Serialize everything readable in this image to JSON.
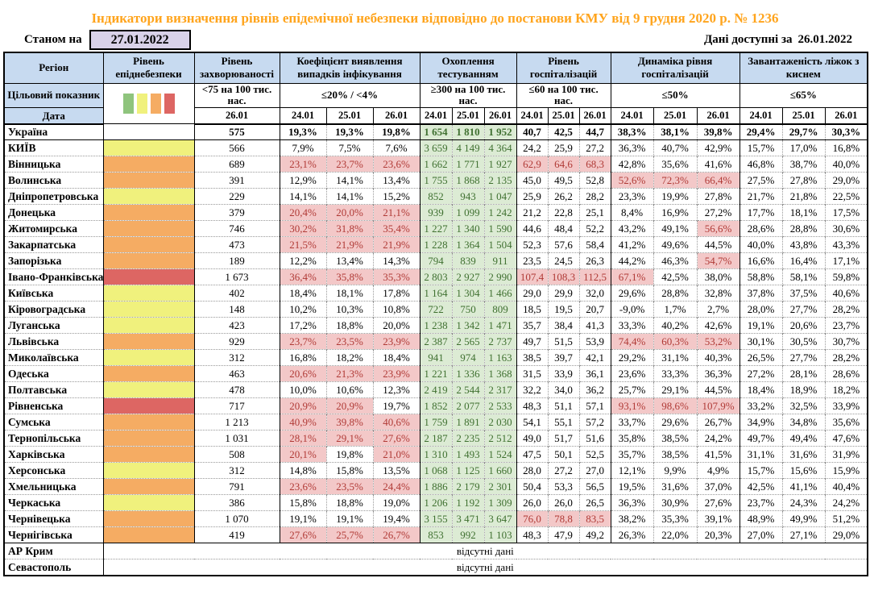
{
  "title": "Індикатори визначення рівнів епідемічної небезпеки відповідно до постанови КМУ від 9 грудня 2020 р. № 1236",
  "as_of_label": "Станом на",
  "as_of_date": "27.01.2022",
  "data_available_label": "Дані доступні за",
  "data_available_date": "26.01.2022",
  "target_label": "Цільовий показник",
  "date_label": "Дата",
  "no_data_text": "відсутні дані",
  "columns": {
    "region": "Регіон",
    "danger": "Рівень епіднебезпеки",
    "morbidity": "Рівень захворюваності",
    "detection": "Коефіцієнт виявлення випадків інфікування",
    "testing": "Охоплення тестуванням",
    "hosp": "Рівень госпіталізацій",
    "hosp_dyn": "Динаміка рівня госпіталізацій",
    "beds": "Завантаженість ліжок з киснем"
  },
  "targets": {
    "morbidity": "<75 на 100 тис. нас.",
    "detection": "≤20% / <4%",
    "testing": "≥300 на 100 тис. нас.",
    "hosp": "≤60 на 100 тис. нас.",
    "hosp_dyn": "≤50%",
    "beds": "≤65%"
  },
  "dates": {
    "morbidity": "26.01",
    "triple": [
      "24.01",
      "25.01",
      "26.01"
    ]
  },
  "legend_colors": [
    "#8FC47D",
    "#F0F17D",
    "#F5AC63",
    "#DD6663"
  ],
  "colors": {
    "title": "#FFA41C",
    "header_bg": "#C7DAF0",
    "date_box_bg": "#D9D2E9",
    "level_yellow": "#F0F17D",
    "level_orange": "#F5AC63",
    "level_red": "#DD6663",
    "level_none": "#FFFFFF",
    "ok_green_bg": "#DCEBD4",
    "ok_green_text": "#3F7030",
    "alert_bg": "#F3C8C8",
    "alert_text": "#B03A36"
  },
  "rows": [
    {
      "region": "Україна",
      "level": "none",
      "bold": true,
      "morb": "575",
      "det": [
        "19,3%",
        "19,3%",
        "19,8%"
      ],
      "det_a": [
        0,
        0,
        0
      ],
      "test": [
        "1 654",
        "1 810",
        "1 952"
      ],
      "hosp": [
        "40,7",
        "42,5",
        "44,7"
      ],
      "hosp_a": [
        0,
        0,
        0
      ],
      "dyn": [
        "38,3%",
        "38,1%",
        "39,8%"
      ],
      "dyn_a": [
        0,
        0,
        0
      ],
      "beds": [
        "29,4%",
        "29,7%",
        "30,3%"
      ]
    },
    {
      "region": "КИЇВ",
      "level": "yellow",
      "morb": "566",
      "det": [
        "7,9%",
        "7,5%",
        "7,6%"
      ],
      "det_a": [
        0,
        0,
        0
      ],
      "test": [
        "3 659",
        "4 149",
        "4 364"
      ],
      "hosp": [
        "24,2",
        "25,9",
        "27,2"
      ],
      "hosp_a": [
        0,
        0,
        0
      ],
      "dyn": [
        "36,3%",
        "40,7%",
        "42,9%"
      ],
      "dyn_a": [
        0,
        0,
        0
      ],
      "beds": [
        "15,7%",
        "17,0%",
        "16,8%"
      ]
    },
    {
      "region": "Вінницька",
      "level": "orange",
      "morb": "689",
      "det": [
        "23,1%",
        "23,7%",
        "23,6%"
      ],
      "det_a": [
        1,
        1,
        1
      ],
      "test": [
        "1 662",
        "1 771",
        "1 927"
      ],
      "hosp": [
        "62,9",
        "64,6",
        "68,3"
      ],
      "hosp_a": [
        1,
        1,
        1
      ],
      "dyn": [
        "42,8%",
        "35,6%",
        "41,6%"
      ],
      "dyn_a": [
        0,
        0,
        0
      ],
      "beds": [
        "46,8%",
        "38,7%",
        "40,0%"
      ]
    },
    {
      "region": "Волинська",
      "level": "orange",
      "morb": "391",
      "det": [
        "12,9%",
        "14,1%",
        "13,4%"
      ],
      "det_a": [
        0,
        0,
        0
      ],
      "test": [
        "1 755",
        "1 868",
        "2 135"
      ],
      "hosp": [
        "45,0",
        "49,5",
        "52,8"
      ],
      "hosp_a": [
        0,
        0,
        0
      ],
      "dyn": [
        "52,6%",
        "72,3%",
        "66,4%"
      ],
      "dyn_a": [
        1,
        1,
        1
      ],
      "beds": [
        "27,5%",
        "27,8%",
        "29,0%"
      ]
    },
    {
      "region": "Дніпропетровська",
      "level": "yellow",
      "morb": "229",
      "det": [
        "14,1%",
        "14,1%",
        "15,2%"
      ],
      "det_a": [
        0,
        0,
        0
      ],
      "test": [
        "852",
        "943",
        "1 047"
      ],
      "hosp": [
        "25,9",
        "26,2",
        "28,2"
      ],
      "hosp_a": [
        0,
        0,
        0
      ],
      "dyn": [
        "23,3%",
        "19,9%",
        "27,8%"
      ],
      "dyn_a": [
        0,
        0,
        0
      ],
      "beds": [
        "21,7%",
        "21,8%",
        "22,5%"
      ]
    },
    {
      "region": "Донецька",
      "level": "orange",
      "morb": "379",
      "det": [
        "20,4%",
        "20,0%",
        "21,1%"
      ],
      "det_a": [
        1,
        1,
        1
      ],
      "test": [
        "939",
        "1 099",
        "1 242"
      ],
      "hosp": [
        "21,2",
        "22,8",
        "25,1"
      ],
      "hosp_a": [
        0,
        0,
        0
      ],
      "dyn": [
        "8,4%",
        "16,9%",
        "27,2%"
      ],
      "dyn_a": [
        0,
        0,
        0
      ],
      "beds": [
        "17,7%",
        "18,1%",
        "17,5%"
      ]
    },
    {
      "region": "Житомирська",
      "level": "orange",
      "morb": "746",
      "det": [
        "30,2%",
        "31,8%",
        "35,4%"
      ],
      "det_a": [
        1,
        1,
        1
      ],
      "test": [
        "1 227",
        "1 340",
        "1 590"
      ],
      "hosp": [
        "44,6",
        "48,4",
        "52,2"
      ],
      "hosp_a": [
        0,
        0,
        0
      ],
      "dyn": [
        "43,2%",
        "49,1%",
        "56,6%"
      ],
      "dyn_a": [
        0,
        0,
        1
      ],
      "beds": [
        "28,6%",
        "28,8%",
        "30,6%"
      ]
    },
    {
      "region": "Закарпатська",
      "level": "orange",
      "morb": "473",
      "det": [
        "21,5%",
        "21,9%",
        "21,9%"
      ],
      "det_a": [
        1,
        1,
        1
      ],
      "test": [
        "1 228",
        "1 364",
        "1 504"
      ],
      "hosp": [
        "52,3",
        "57,6",
        "58,4"
      ],
      "hosp_a": [
        0,
        0,
        0
      ],
      "dyn": [
        "41,2%",
        "49,6%",
        "44,5%"
      ],
      "dyn_a": [
        0,
        0,
        0
      ],
      "beds": [
        "40,0%",
        "43,8%",
        "43,3%"
      ]
    },
    {
      "region": "Запорізька",
      "level": "orange",
      "morb": "189",
      "det": [
        "12,2%",
        "13,4%",
        "14,3%"
      ],
      "det_a": [
        0,
        0,
        0
      ],
      "test": [
        "794",
        "839",
        "911"
      ],
      "hosp": [
        "23,5",
        "24,5",
        "26,3"
      ],
      "hosp_a": [
        0,
        0,
        0
      ],
      "dyn": [
        "44,2%",
        "46,3%",
        "54,7%"
      ],
      "dyn_a": [
        0,
        0,
        1
      ],
      "beds": [
        "16,6%",
        "16,4%",
        "17,1%"
      ]
    },
    {
      "region": "Івано-Франківська",
      "level": "red",
      "morb": "1 673",
      "det": [
        "36,4%",
        "35,8%",
        "35,3%"
      ],
      "det_a": [
        1,
        1,
        1
      ],
      "test": [
        "2 803",
        "2 927",
        "2 990"
      ],
      "hosp": [
        "107,4",
        "108,3",
        "112,5"
      ],
      "hosp_a": [
        1,
        1,
        1
      ],
      "dyn": [
        "67,1%",
        "42,5%",
        "38,0%"
      ],
      "dyn_a": [
        1,
        0,
        0
      ],
      "beds": [
        "58,8%",
        "58,1%",
        "59,8%"
      ]
    },
    {
      "region": "Київська",
      "level": "yellow",
      "morb": "402",
      "det": [
        "18,4%",
        "18,1%",
        "17,8%"
      ],
      "det_a": [
        0,
        0,
        0
      ],
      "test": [
        "1 164",
        "1 304",
        "1 466"
      ],
      "hosp": [
        "29,0",
        "29,9",
        "32,0"
      ],
      "hosp_a": [
        0,
        0,
        0
      ],
      "dyn": [
        "29,6%",
        "28,8%",
        "32,8%"
      ],
      "dyn_a": [
        0,
        0,
        0
      ],
      "beds": [
        "37,8%",
        "37,5%",
        "40,6%"
      ]
    },
    {
      "region": "Кіровоградська",
      "level": "yellow",
      "morb": "148",
      "det": [
        "10,2%",
        "10,3%",
        "10,8%"
      ],
      "det_a": [
        0,
        0,
        0
      ],
      "test": [
        "722",
        "750",
        "809"
      ],
      "hosp": [
        "18,5",
        "19,5",
        "20,7"
      ],
      "hosp_a": [
        0,
        0,
        0
      ],
      "dyn": [
        "-9,0%",
        "1,7%",
        "2,7%"
      ],
      "dyn_a": [
        0,
        0,
        0
      ],
      "beds": [
        "28,0%",
        "27,7%",
        "28,2%"
      ]
    },
    {
      "region": "Луганська",
      "level": "yellow",
      "morb": "423",
      "det": [
        "17,2%",
        "18,8%",
        "20,0%"
      ],
      "det_a": [
        0,
        0,
        0
      ],
      "test": [
        "1 238",
        "1 342",
        "1 471"
      ],
      "hosp": [
        "35,7",
        "38,4",
        "41,3"
      ],
      "hosp_a": [
        0,
        0,
        0
      ],
      "dyn": [
        "33,3%",
        "40,2%",
        "42,6%"
      ],
      "dyn_a": [
        0,
        0,
        0
      ],
      "beds": [
        "19,1%",
        "20,6%",
        "23,7%"
      ]
    },
    {
      "region": "Львівська",
      "level": "orange",
      "morb": "929",
      "det": [
        "23,7%",
        "23,5%",
        "23,9%"
      ],
      "det_a": [
        1,
        1,
        1
      ],
      "test": [
        "2 387",
        "2 565",
        "2 737"
      ],
      "hosp": [
        "49,7",
        "51,5",
        "53,9"
      ],
      "hosp_a": [
        0,
        0,
        0
      ],
      "dyn": [
        "74,4%",
        "60,3%",
        "53,2%"
      ],
      "dyn_a": [
        1,
        1,
        1
      ],
      "beds": [
        "30,1%",
        "30,5%",
        "30,7%"
      ]
    },
    {
      "region": "Миколаївська",
      "level": "yellow",
      "morb": "312",
      "det": [
        "16,8%",
        "18,2%",
        "18,4%"
      ],
      "det_a": [
        0,
        0,
        0
      ],
      "test": [
        "941",
        "974",
        "1 163"
      ],
      "hosp": [
        "38,5",
        "39,7",
        "42,1"
      ],
      "hosp_a": [
        0,
        0,
        0
      ],
      "dyn": [
        "29,2%",
        "31,1%",
        "40,3%"
      ],
      "dyn_a": [
        0,
        0,
        0
      ],
      "beds": [
        "26,5%",
        "27,7%",
        "28,2%"
      ]
    },
    {
      "region": "Одеська",
      "level": "orange",
      "morb": "463",
      "det": [
        "20,6%",
        "21,3%",
        "23,9%"
      ],
      "det_a": [
        1,
        1,
        1
      ],
      "test": [
        "1 221",
        "1 336",
        "1 368"
      ],
      "hosp": [
        "31,5",
        "33,9",
        "36,1"
      ],
      "hosp_a": [
        0,
        0,
        0
      ],
      "dyn": [
        "23,6%",
        "33,3%",
        "36,3%"
      ],
      "dyn_a": [
        0,
        0,
        0
      ],
      "beds": [
        "27,2%",
        "28,1%",
        "28,6%"
      ]
    },
    {
      "region": "Полтавська",
      "level": "yellow",
      "morb": "478",
      "det": [
        "10,0%",
        "10,6%",
        "12,3%"
      ],
      "det_a": [
        0,
        0,
        0
      ],
      "test": [
        "2 419",
        "2 544",
        "2 317"
      ],
      "hosp": [
        "32,2",
        "34,0",
        "36,2"
      ],
      "hosp_a": [
        0,
        0,
        0
      ],
      "dyn": [
        "25,7%",
        "29,1%",
        "44,5%"
      ],
      "dyn_a": [
        0,
        0,
        0
      ],
      "beds": [
        "18,4%",
        "18,9%",
        "18,2%"
      ]
    },
    {
      "region": "Рівненська",
      "level": "red",
      "morb": "717",
      "det": [
        "20,9%",
        "20,9%",
        "19,7%"
      ],
      "det_a": [
        1,
        1,
        0
      ],
      "test": [
        "1 852",
        "2 077",
        "2 533"
      ],
      "hosp": [
        "48,3",
        "51,1",
        "57,1"
      ],
      "hosp_a": [
        0,
        0,
        0
      ],
      "dyn": [
        "93,1%",
        "98,6%",
        "107,9%"
      ],
      "dyn_a": [
        1,
        1,
        1
      ],
      "beds": [
        "33,2%",
        "32,5%",
        "33,9%"
      ]
    },
    {
      "region": "Сумська",
      "level": "orange",
      "morb": "1 213",
      "det": [
        "40,9%",
        "39,8%",
        "40,6%"
      ],
      "det_a": [
        1,
        1,
        1
      ],
      "test": [
        "1 759",
        "1 891",
        "2 030"
      ],
      "hosp": [
        "54,1",
        "55,1",
        "57,2"
      ],
      "hosp_a": [
        0,
        0,
        0
      ],
      "dyn": [
        "33,7%",
        "29,6%",
        "26,7%"
      ],
      "dyn_a": [
        0,
        0,
        0
      ],
      "beds": [
        "34,9%",
        "34,8%",
        "35,6%"
      ]
    },
    {
      "region": "Тернопільська",
      "level": "orange",
      "morb": "1 031",
      "det": [
        "28,1%",
        "29,1%",
        "27,6%"
      ],
      "det_a": [
        1,
        1,
        1
      ],
      "test": [
        "2 187",
        "2 235",
        "2 512"
      ],
      "hosp": [
        "49,0",
        "51,7",
        "51,6"
      ],
      "hosp_a": [
        0,
        0,
        0
      ],
      "dyn": [
        "35,8%",
        "38,5%",
        "24,2%"
      ],
      "dyn_a": [
        0,
        0,
        0
      ],
      "beds": [
        "49,7%",
        "49,4%",
        "47,6%"
      ]
    },
    {
      "region": "Харківська",
      "level": "orange",
      "morb": "508",
      "det": [
        "20,1%",
        "19,8%",
        "21,0%"
      ],
      "det_a": [
        1,
        0,
        1
      ],
      "test": [
        "1 310",
        "1 493",
        "1 524"
      ],
      "hosp": [
        "47,5",
        "50,1",
        "52,5"
      ],
      "hosp_a": [
        0,
        0,
        0
      ],
      "dyn": [
        "35,7%",
        "38,5%",
        "41,5%"
      ],
      "dyn_a": [
        0,
        0,
        0
      ],
      "beds": [
        "31,1%",
        "31,6%",
        "31,9%"
      ]
    },
    {
      "region": "Херсонська",
      "level": "yellow",
      "morb": "312",
      "det": [
        "14,8%",
        "15,8%",
        "13,5%"
      ],
      "det_a": [
        0,
        0,
        0
      ],
      "test": [
        "1 068",
        "1 125",
        "1 660"
      ],
      "hosp": [
        "28,0",
        "27,2",
        "27,0"
      ],
      "hosp_a": [
        0,
        0,
        0
      ],
      "dyn": [
        "12,1%",
        "9,9%",
        "4,9%"
      ],
      "dyn_a": [
        0,
        0,
        0
      ],
      "beds": [
        "15,7%",
        "15,6%",
        "15,9%"
      ]
    },
    {
      "region": "Хмельницька",
      "level": "orange",
      "morb": "791",
      "det": [
        "23,6%",
        "23,5%",
        "24,4%"
      ],
      "det_a": [
        1,
        1,
        1
      ],
      "test": [
        "1 886",
        "2 179",
        "2 301"
      ],
      "hosp": [
        "50,4",
        "53,3",
        "56,5"
      ],
      "hosp_a": [
        0,
        0,
        0
      ],
      "dyn": [
        "19,5%",
        "31,6%",
        "37,0%"
      ],
      "dyn_a": [
        0,
        0,
        0
      ],
      "beds": [
        "42,5%",
        "41,1%",
        "40,4%"
      ]
    },
    {
      "region": "Черкаська",
      "level": "yellow",
      "morb": "386",
      "det": [
        "15,8%",
        "18,8%",
        "19,0%"
      ],
      "det_a": [
        0,
        0,
        0
      ],
      "test": [
        "1 206",
        "1 192",
        "1 309"
      ],
      "hosp": [
        "26,0",
        "26,0",
        "26,5"
      ],
      "hosp_a": [
        0,
        0,
        0
      ],
      "dyn": [
        "36,3%",
        "30,9%",
        "27,6%"
      ],
      "dyn_a": [
        0,
        0,
        0
      ],
      "beds": [
        "23,7%",
        "24,3%",
        "24,2%"
      ]
    },
    {
      "region": "Чернівецька",
      "level": "orange",
      "morb": "1 070",
      "det": [
        "19,1%",
        "19,1%",
        "19,4%"
      ],
      "det_a": [
        0,
        0,
        0
      ],
      "test": [
        "3 155",
        "3 471",
        "3 647"
      ],
      "hosp": [
        "76,0",
        "78,8",
        "83,5"
      ],
      "hosp_a": [
        1,
        1,
        1
      ],
      "dyn": [
        "38,2%",
        "35,3%",
        "39,1%"
      ],
      "dyn_a": [
        0,
        0,
        0
      ],
      "beds": [
        "48,9%",
        "49,9%",
        "51,2%"
      ]
    },
    {
      "region": "Чернігівська",
      "level": "orange",
      "morb": "419",
      "det": [
        "27,6%",
        "25,7%",
        "26,7%"
      ],
      "det_a": [
        1,
        1,
        1
      ],
      "test": [
        "853",
        "992",
        "1 103"
      ],
      "hosp": [
        "48,3",
        "47,9",
        "49,2"
      ],
      "hosp_a": [
        0,
        0,
        0
      ],
      "dyn": [
        "26,3%",
        "22,0%",
        "20,3%"
      ],
      "dyn_a": [
        0,
        0,
        0
      ],
      "beds": [
        "27,0%",
        "27,1%",
        "29,0%"
      ]
    },
    {
      "region": "АР Крим",
      "no_data": true
    },
    {
      "region": "Севастополь",
      "no_data": true
    }
  ]
}
